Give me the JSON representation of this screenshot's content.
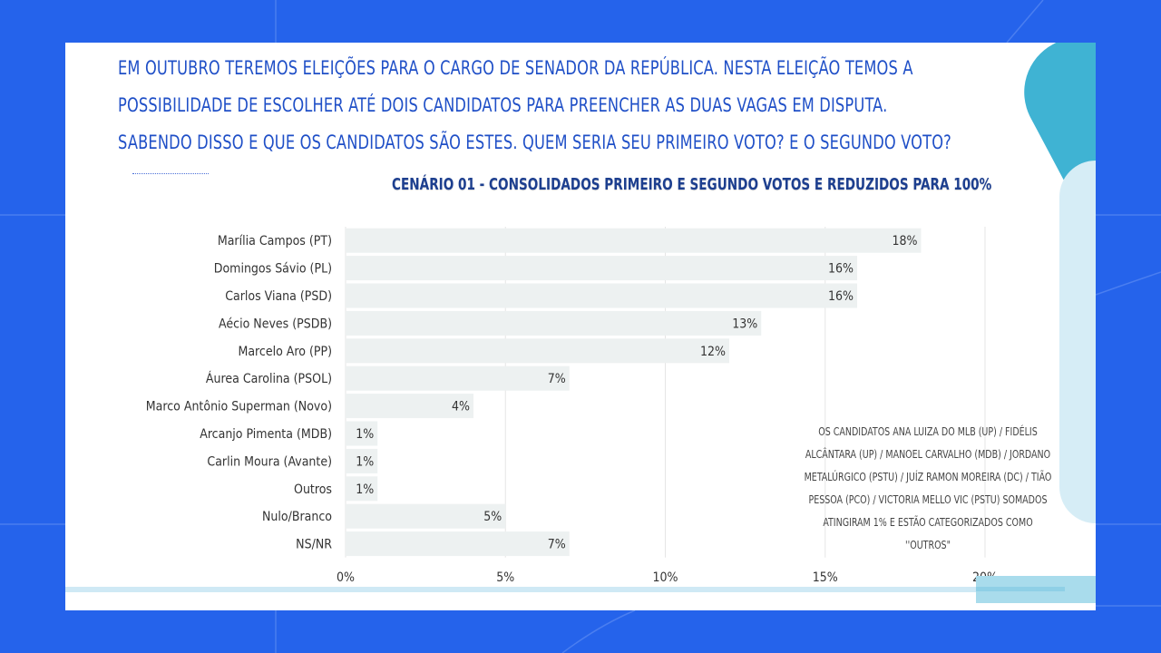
{
  "question": {
    "lines": [
      "EM OUTUBRO TEREMOS ELEIÇÕES PARA O CARGO DE SENADOR DA REPÚBLICA. NESTA ELEIÇÃO TEMOS A",
      "POSSIBILIDADE DE ESCOLHER ATÉ DOIS CANDIDATOS PARA PREENCHER AS DUAS VAGAS EM DISPUTA.",
      "SABENDO DISSO E QUE OS CANDIDATOS SÃO ESTES. QUEM SERIA SEU PRIMEIRO VOTO? E O SEGUNDO VOTO?"
    ]
  },
  "note": "OS CANDIDATOS ANA LUIZA DO MLB (UP) / FIDÉLIS ALCÂNTARA (UP) / MANOEL CARVALHO (MDB) / JORDANO METALÚRGICO (PSTU) / JUÍZ RAMON MOREIRA (DC) / TIÃO PESSOA (PCO) / VICTORIA MELLO VIC (PSTU) SOMADOS ATINGIRAM 1% E ESTÃO CATEGORIZADOS COMO ''OUTROS\"",
  "colors": {
    "background": "#2563eb",
    "bar": "#edf1f1",
    "title": "#1d3f8f",
    "question": "#1f4fc7"
  },
  "chart_data": {
    "type": "bar",
    "orientation": "horizontal",
    "title": "CENÁRIO 01 - CONSOLIDADOS PRIMEIRO E SEGUNDO VOTOS E REDUZIDOS PARA 100%",
    "categories": [
      "Marília Campos (PT)",
      "Domingos Sávio (PL)",
      "Carlos Viana (PSD)",
      "Aécio Neves (PSDB)",
      "Marcelo Aro (PP)",
      "Áurea Carolina (PSOL)",
      "Marco Antônio Superman (Novo)",
      "Arcanjo Pimenta (MDB)",
      "Carlin Moura (Avante)",
      "Outros",
      "Nulo/Branco",
      "NS/NR"
    ],
    "values": [
      18,
      16,
      16,
      13,
      12,
      7,
      4,
      1,
      1,
      1,
      5,
      7
    ],
    "value_labels": [
      "18%",
      "16%",
      "16%",
      "13%",
      "12%",
      "7%",
      "4%",
      "1%",
      "1%",
      "1%",
      "5%",
      "7%"
    ],
    "xlim": [
      0,
      20
    ],
    "xticks": [
      0,
      5,
      10,
      15,
      20
    ],
    "xtick_labels": [
      "0%",
      "5%",
      "10%",
      "15%",
      "20%"
    ],
    "grid": true,
    "legend": "none"
  }
}
